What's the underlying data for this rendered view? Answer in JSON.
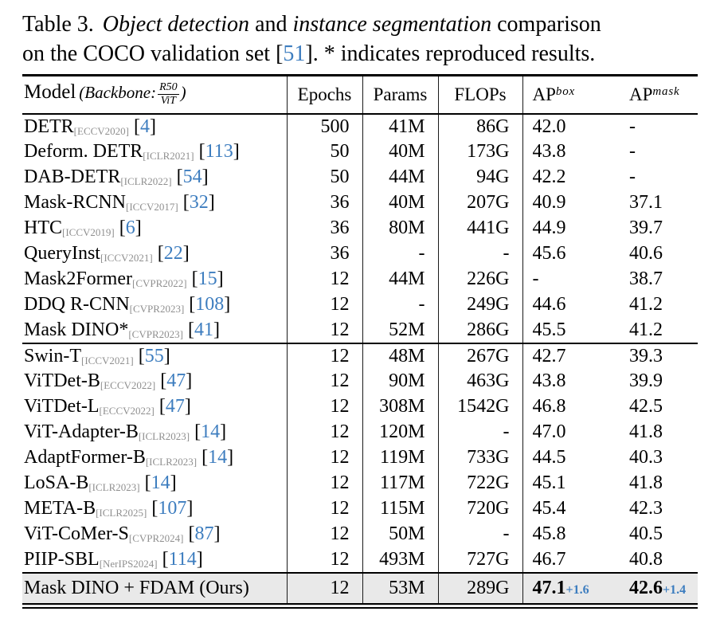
{
  "caption": {
    "label": "Table 3.",
    "italic_1": "Object detection",
    "and_text": " and ",
    "italic_2": "instance segmentation",
    "line1_tail": " comparison",
    "line2_pre": "on the COCO validation set [",
    "cite": "51",
    "line2_post": "]. * indicates reproduced results."
  },
  "punct": {
    "lbracket": "[",
    "rbracket": "]"
  },
  "header": {
    "model_label": "Model",
    "backbone_italic": "(Backbone:",
    "frac_top": "R50",
    "frac_bottom": "ViT",
    "paren_close": ")",
    "epochs": "Epochs",
    "params": "Params",
    "flops": "FLOPs",
    "ap_base": "AP",
    "ap_box_sup": "box",
    "ap_mask_sup": "mask"
  },
  "groups": [
    {
      "rows": [
        {
          "model": "DETR",
          "venue": "[ECCV2020]",
          "cite": "4",
          "epochs": "500",
          "params": "41M",
          "flops": "86G",
          "ap_box": "42.0",
          "ap_mask": "-"
        },
        {
          "model": "Deform. DETR",
          "venue": "[ICLR2021]",
          "cite": "113",
          "epochs": "50",
          "params": "40M",
          "flops": "173G",
          "ap_box": "43.8",
          "ap_mask": "-"
        },
        {
          "model": "DAB-DETR",
          "venue": "[ICLR2022]",
          "cite": "54",
          "epochs": "50",
          "params": "44M",
          "flops": "94G",
          "ap_box": "42.2",
          "ap_mask": "-"
        },
        {
          "model": "Mask-RCNN",
          "venue": "[ICCV2017]",
          "cite": "32",
          "epochs": "36",
          "params": "40M",
          "flops": "207G",
          "ap_box": "40.9",
          "ap_mask": "37.1"
        },
        {
          "model": "HTC",
          "venue": "[ICCV2019]",
          "cite": "6",
          "epochs": "36",
          "params": "80M",
          "flops": "441G",
          "ap_box": "44.9",
          "ap_mask": "39.7"
        },
        {
          "model": "QueryInst",
          "venue": "[ICCV2021]",
          "cite": "22",
          "epochs": "36",
          "params": "-",
          "flops": "-",
          "ap_box": "45.6",
          "ap_mask": "40.6"
        },
        {
          "model": "Mask2Former",
          "venue": "[CVPR2022]",
          "cite": "15",
          "epochs": "12",
          "params": "44M",
          "flops": "226G",
          "ap_box": "-",
          "ap_mask": "38.7"
        },
        {
          "model": "DDQ R-CNN",
          "venue": "[CVPR2023]",
          "cite": "108",
          "epochs": "12",
          "params": "-",
          "flops": "249G",
          "ap_box": "44.6",
          "ap_mask": "41.2"
        },
        {
          "model": "Mask DINO*",
          "venue": "[CVPR2023]",
          "cite": "41",
          "epochs": "12",
          "params": "52M",
          "flops": "286G",
          "ap_box": "45.5",
          "ap_mask": "41.2"
        }
      ]
    },
    {
      "rows": [
        {
          "model": "Swin-T",
          "venue": "[ICCV2021]",
          "cite": "55",
          "epochs": "12",
          "params": "48M",
          "flops": "267G",
          "ap_box": "42.7",
          "ap_mask": "39.3"
        },
        {
          "model": "ViTDet-B",
          "venue": "[ECCV2022]",
          "cite": "47",
          "epochs": "12",
          "params": "90M",
          "flops": "463G",
          "ap_box": "43.8",
          "ap_mask": "39.9"
        },
        {
          "model": "ViTDet-L",
          "venue": "[ECCV2022]",
          "cite": "47",
          "epochs": "12",
          "params": "308M",
          "flops": "1542G",
          "ap_box": "46.8",
          "ap_mask": "42.5"
        },
        {
          "model": "ViT-Adapter-B",
          "venue": "[ICLR2023]",
          "cite": "14",
          "epochs": "12",
          "params": "120M",
          "flops": "-",
          "ap_box": "47.0",
          "ap_mask": "41.8"
        },
        {
          "model": "AdaptFormer-B",
          "venue": "[ICLR2023]",
          "cite": "14",
          "epochs": "12",
          "params": "119M",
          "flops": "733G",
          "ap_box": "44.5",
          "ap_mask": "40.3"
        },
        {
          "model": "LoSA-B",
          "venue": "[ICLR2023]",
          "cite": "14",
          "epochs": "12",
          "params": "117M",
          "flops": "722G",
          "ap_box": "45.1",
          "ap_mask": "41.8"
        },
        {
          "model": "META-B",
          "venue": "[ICLR2025]",
          "cite": "107",
          "epochs": "12",
          "params": "115M",
          "flops": "720G",
          "ap_box": "45.4",
          "ap_mask": "42.3"
        },
        {
          "model": "ViT-CoMer-S",
          "venue": "[CVPR2024]",
          "cite": "87",
          "epochs": "12",
          "params": "50M",
          "flops": "-",
          "ap_box": "45.8",
          "ap_mask": "40.5"
        },
        {
          "model": "PIIP-SBL",
          "venue": "[NerIPS2024]",
          "cite": "114",
          "epochs": "12",
          "params": "493M",
          "flops": "727G",
          "ap_box": "46.7",
          "ap_mask": "40.8"
        }
      ]
    }
  ],
  "final_row": {
    "model": "Mask DINO + FDAM (Ours)",
    "epochs": "12",
    "params": "53M",
    "flops": "289G",
    "ap_box": "47.1",
    "ap_box_gain": "+1.6",
    "ap_mask": "42.6",
    "ap_mask_gain": "+1.4"
  },
  "colors": {
    "cite_blue": "#3d7dbf",
    "venue_gray": "#8f8f8f",
    "highlight_bg": "#e9e9e9"
  }
}
